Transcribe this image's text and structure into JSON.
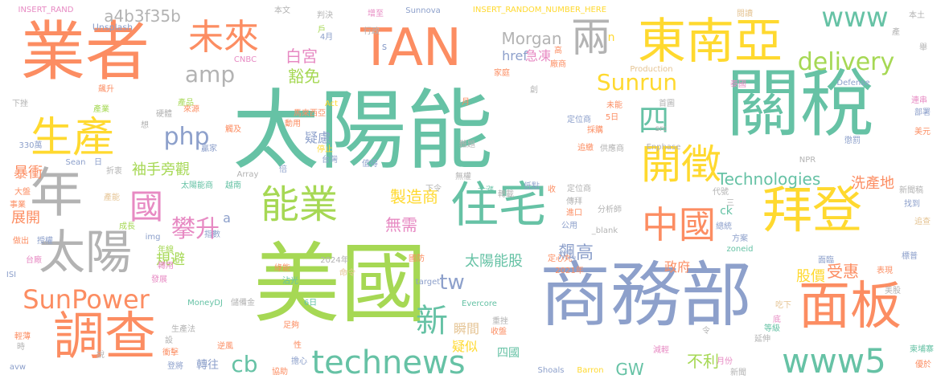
{
  "palette": {
    "teal": "#66c2a5",
    "orange": "#fc8d62",
    "blue": "#8da0cb",
    "pink": "#e78ac3",
    "green": "#a6d854",
    "yellow": "#ffd92f",
    "tan": "#e5c494",
    "gray": "#b3b3b3"
  },
  "words": [
    {
      "text": "太陽能",
      "color": "teal"
    },
    {
      "text": "關稅",
      "color": "teal"
    },
    {
      "text": "美國",
      "color": "green"
    },
    {
      "text": "商務部",
      "color": "blue"
    },
    {
      "text": "業者",
      "color": "orange"
    },
    {
      "text": "TAN",
      "color": "orange"
    },
    {
      "text": "東南亞",
      "color": "yellow"
    },
    {
      "text": "拜登",
      "color": "yellow"
    },
    {
      "text": "調查",
      "color": "orange"
    },
    {
      "text": "面板",
      "color": "orange"
    },
    {
      "text": "住宅",
      "color": "teal"
    },
    {
      "text": "年",
      "color": "gray"
    },
    {
      "text": "太陽",
      "color": "gray"
    },
    {
      "text": "生產",
      "color": "yellow"
    },
    {
      "text": "能業",
      "color": "green"
    },
    {
      "text": "開徵",
      "color": "yellow"
    },
    {
      "text": "中國",
      "color": "orange"
    },
    {
      "text": "未來",
      "color": "orange"
    },
    {
      "text": "兩",
      "color": "gray"
    },
    {
      "text": "www5",
      "color": "teal"
    },
    {
      "text": "technews",
      "color": "teal"
    },
    {
      "text": "SunPower",
      "color": "orange"
    },
    {
      "text": "國",
      "color": "pink"
    },
    {
      "text": "www",
      "color": "teal"
    },
    {
      "text": "delivery",
      "color": "green"
    },
    {
      "text": "Sunrun",
      "color": "yellow"
    },
    {
      "text": "四",
      "color": "teal"
    },
    {
      "text": "新",
      "color": "teal"
    },
    {
      "text": "tw",
      "color": "blue"
    },
    {
      "text": "攀升",
      "color": "pink"
    },
    {
      "text": "php",
      "color": "blue"
    },
    {
      "text": "amp",
      "color": "gray"
    },
    {
      "text": "cb",
      "color": "teal"
    },
    {
      "text": "Technologies",
      "color": "teal"
    },
    {
      "text": "Morgan",
      "color": "gray"
    },
    {
      "text": "a4b3f35b",
      "color": "gray"
    },
    {
      "text": "白宮",
      "color": "pink"
    },
    {
      "text": "豁免",
      "color": "green"
    },
    {
      "text": "GW",
      "color": "teal"
    },
    {
      "text": "不利",
      "color": "green"
    },
    {
      "text": "飆高",
      "color": "blue"
    },
    {
      "text": "製造商",
      "color": "yellow"
    },
    {
      "text": "無需",
      "color": "pink"
    },
    {
      "text": "太陽能股",
      "color": "teal"
    },
    {
      "text": "受惠",
      "color": "orange"
    },
    {
      "text": "股價",
      "color": "yellow"
    },
    {
      "text": "洗產地",
      "color": "orange"
    },
    {
      "text": "暴衝",
      "color": "orange"
    },
    {
      "text": "展開",
      "color": "orange"
    },
    {
      "text": "規避",
      "color": "green"
    },
    {
      "text": "袖手旁觀",
      "color": "green"
    },
    {
      "text": "疑慮",
      "color": "blue"
    },
    {
      "text": "急凍",
      "color": "pink"
    },
    {
      "text": "href",
      "color": "blue"
    },
    {
      "text": "瞬間",
      "color": "tan"
    },
    {
      "text": "疑似",
      "color": "yellow"
    },
    {
      "text": "轉往",
      "color": "blue"
    },
    {
      "text": "四國",
      "color": "teal"
    },
    {
      "text": "政府",
      "color": "orange"
    },
    {
      "text": "ck",
      "color": "teal"
    },
    {
      "text": "a",
      "color": "blue"
    },
    {
      "text": "INSERT_RAND",
      "color": "pink"
    },
    {
      "text": "INSERT_RANDOM_NUMBER_HERE",
      "color": "yellow"
    },
    {
      "text": "Unsplash",
      "color": "blue"
    },
    {
      "text": "本文",
      "color": "gray"
    },
    {
      "text": "判決",
      "color": "gray"
    },
    {
      "text": "增至",
      "color": "pink"
    },
    {
      "text": "Sunnova",
      "color": "blue"
    },
    {
      "text": "閱讀",
      "color": "tan"
    },
    {
      "text": "本土",
      "color": "gray"
    },
    {
      "text": "行政",
      "color": "gray"
    },
    {
      "text": "4月",
      "color": "blue"
    },
    {
      "text": "CNBC",
      "color": "pink"
    },
    {
      "text": "n",
      "color": "yellow"
    },
    {
      "text": "s",
      "color": "blue"
    },
    {
      "text": "戶",
      "color": "green"
    },
    {
      "text": "Production",
      "color": "tan"
    },
    {
      "text": "Defense",
      "color": "blue"
    },
    {
      "text": "Act",
      "color": "yellow"
    },
    {
      "text": "下挫",
      "color": "gray"
    },
    {
      "text": "飆升",
      "color": "orange"
    },
    {
      "text": "產業",
      "color": "green"
    },
    {
      "text": "產品",
      "color": "green"
    },
    {
      "text": "硬體",
      "color": "gray"
    },
    {
      "text": "來源",
      "color": "orange"
    },
    {
      "text": "觸及",
      "color": "orange"
    },
    {
      "text": "動用",
      "color": "orange"
    },
    {
      "text": "馬來西亞",
      "color": "orange"
    },
    {
      "text": "想",
      "color": "gray"
    },
    {
      "text": "330萬",
      "color": "blue"
    },
    {
      "text": "折衷",
      "color": "gray"
    },
    {
      "text": "贏家",
      "color": "blue"
    },
    {
      "text": "Sean",
      "color": "blue"
    },
    {
      "text": "日",
      "color": "blue"
    },
    {
      "text": "停止",
      "color": "yellow"
    },
    {
      "text": "台灣",
      "color": "blue"
    },
    {
      "text": "Array",
      "color": "gray"
    },
    {
      "text": "倍",
      "color": "blue"
    },
    {
      "text": "值得",
      "color": "blue"
    },
    {
      "text": "大盤",
      "color": "orange"
    },
    {
      "text": "事業",
      "color": "orange"
    },
    {
      "text": "做出",
      "color": "orange"
    },
    {
      "text": "龐大",
      "color": "yellow"
    },
    {
      "text": "授權",
      "color": "blue"
    },
    {
      "text": "台廠",
      "color": "pink"
    },
    {
      "text": "ISI",
      "color": "blue"
    },
    {
      "text": "發展",
      "color": "pink"
    },
    {
      "text": "轉用",
      "color": "pink"
    },
    {
      "text": "年線",
      "color": "green"
    },
    {
      "text": "指數",
      "color": "blue"
    },
    {
      "text": "img",
      "color": "blue"
    },
    {
      "text": "成長",
      "color": "green"
    },
    {
      "text": "產能",
      "color": "tan"
    },
    {
      "text": "越南",
      "color": "teal"
    },
    {
      "text": "太陽能商",
      "color": "teal"
    },
    {
      "text": "MoneyDJ",
      "color": "teal"
    },
    {
      "text": "儲備金",
      "color": "gray"
    },
    {
      "text": "2024年",
      "color": "gray"
    },
    {
      "text": "2021年",
      "color": "orange"
    },
    {
      "text": "生產法",
      "color": "gray"
    },
    {
      "text": "衝擊",
      "color": "orange"
    },
    {
      "text": "登將",
      "color": "blue"
    },
    {
      "text": "逆風",
      "color": "orange"
    },
    {
      "text": "擔心",
      "color": "blue"
    },
    {
      "text": "協助",
      "color": "orange"
    },
    {
      "text": "足夠",
      "color": "orange"
    },
    {
      "text": "Evercore",
      "color": "teal"
    },
    {
      "text": "收盤",
      "color": "orange"
    },
    {
      "text": "target",
      "color": "blue"
    },
    {
      "text": "沾光",
      "color": "teal"
    },
    {
      "text": "6日",
      "color": "teal"
    },
    {
      "text": "國防",
      "color": "orange"
    },
    {
      "text": "Shoals",
      "color": "blue"
    },
    {
      "text": "Barron",
      "color": "yellow"
    },
    {
      "text": "減輕",
      "color": "pink"
    },
    {
      "text": "月份",
      "color": "pink"
    },
    {
      "text": "新聞",
      "color": "gray"
    },
    {
      "text": "延伸",
      "color": "gray"
    },
    {
      "text": "優於",
      "color": "orange"
    },
    {
      "text": "柬埔寨",
      "color": "teal"
    },
    {
      "text": "等級",
      "color": "teal"
    },
    {
      "text": "吃下",
      "color": "tan"
    },
    {
      "text": "美股",
      "color": "gray"
    },
    {
      "text": "表現",
      "color": "orange"
    },
    {
      "text": "zoneid",
      "color": "teal"
    },
    {
      "text": "方案",
      "color": "blue"
    },
    {
      "text": "面臨",
      "color": "blue"
    },
    {
      "text": "標普",
      "color": "blue"
    },
    {
      "text": "追查",
      "color": "tan"
    },
    {
      "text": "新聞稿",
      "color": "gray"
    },
    {
      "text": "找到",
      "color": "blue"
    },
    {
      "text": "分析師",
      "color": "gray"
    },
    {
      "text": "總統",
      "color": "blue"
    },
    {
      "text": "代號",
      "color": "gray"
    },
    {
      "text": "供應商",
      "color": "gray"
    },
    {
      "text": "Enphase",
      "color": "gray"
    },
    {
      "text": "NPR",
      "color": "gray"
    },
    {
      "text": "懲罰",
      "color": "blue"
    },
    {
      "text": "美元",
      "color": "orange"
    },
    {
      "text": "部署",
      "color": "blue"
    },
    {
      "text": "連串",
      "color": "pink"
    },
    {
      "text": "泰國",
      "color": "pink"
    },
    {
      "text": "首圖",
      "color": "gray"
    },
    {
      "text": "src",
      "color": "gray"
    },
    {
      "text": "廠商",
      "color": "orange"
    },
    {
      "text": "家庭",
      "color": "orange"
    },
    {
      "text": "未能",
      "color": "orange"
    },
    {
      "text": "5日",
      "color": "orange"
    },
    {
      "text": "定位商",
      "color": "blue"
    },
    {
      "text": "追繳",
      "color": "orange"
    },
    {
      "text": "採購",
      "color": "orange"
    },
    {
      "text": "難題",
      "color": "gray"
    },
    {
      "text": "無權",
      "color": "gray"
    },
    {
      "text": "下令",
      "color": "gray"
    },
    {
      "text": "大漲",
      "color": "teal"
    },
    {
      "text": "轉載",
      "color": "gray"
    },
    {
      "text": "低點",
      "color": "blue"
    },
    {
      "text": "收",
      "color": "orange"
    },
    {
      "text": "定位商",
      "color": "gray"
    },
    {
      "text": "傳拜",
      "color": "gray"
    },
    {
      "text": "進口",
      "color": "orange"
    },
    {
      "text": "公用",
      "color": "blue"
    },
    {
      "text": "_blank",
      "color": "gray"
    },
    {
      "text": "定心丸",
      "color": "orange"
    },
    {
      "text": "命令",
      "color": "tan"
    },
    {
      "text": "重挫",
      "color": "gray"
    },
    {
      "text": "性",
      "color": "orange"
    },
    {
      "text": "令",
      "color": "gray"
    },
    {
      "text": "說",
      "color": "gray"
    },
    {
      "text": "設",
      "color": "gray"
    },
    {
      "text": "時",
      "color": "gray"
    },
    {
      "text": "輕薄",
      "color": "orange"
    },
    {
      "text": "avw",
      "color": "blue"
    },
    {
      "text": "三",
      "color": "gray"
    },
    {
      "text": "舉",
      "color": "gray"
    },
    {
      "text": "創",
      "color": "gray"
    },
    {
      "text": "月",
      "color": "orange"
    },
    {
      "text": "高",
      "color": "orange"
    },
    {
      "text": "產",
      "color": "gray"
    },
    {
      "text": "底",
      "color": "pink"
    },
    {
      "text": "綠能",
      "color": "orange"
    }
  ]
}
